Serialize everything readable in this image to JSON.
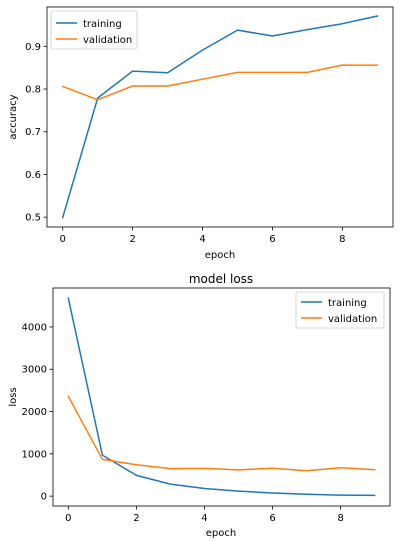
{
  "chart_data": [
    {
      "type": "line",
      "title": "",
      "xlabel": "epoch",
      "ylabel": "accuracy",
      "x": [
        0,
        1,
        2,
        3,
        4,
        5,
        6,
        7,
        8,
        9
      ],
      "xlim": [
        -0.45,
        9.45
      ],
      "ylim": [
        0.477,
        0.992
      ],
      "xticks": [
        0,
        2,
        4,
        6,
        8
      ],
      "yticks": [
        0.5,
        0.6,
        0.7,
        0.8,
        0.9
      ],
      "ytick_labels": [
        "0.5",
        "0.6",
        "0.7",
        "0.8",
        "0.9"
      ],
      "grid": false,
      "legend_position": "upper-left",
      "series": [
        {
          "name": "training",
          "color": "#1f77b4",
          "values": [
            0.499,
            0.779,
            0.842,
            0.838,
            0.891,
            0.938,
            0.924,
            0.939,
            0.953,
            0.971
          ]
        },
        {
          "name": "validation",
          "color": "#ff7f0e",
          "values": [
            0.806,
            0.775,
            0.807,
            0.807,
            0.823,
            0.839,
            0.839,
            0.839,
            0.856,
            0.856
          ]
        }
      ]
    },
    {
      "type": "line",
      "title": "model loss",
      "xlabel": "epoch",
      "ylabel": "loss",
      "x": [
        0,
        1,
        2,
        3,
        4,
        5,
        6,
        7,
        8,
        9
      ],
      "xlim": [
        -0.45,
        9.45
      ],
      "ylim": [
        -233,
        4920
      ],
      "xticks": [
        0,
        2,
        4,
        6,
        8
      ],
      "yticks": [
        0,
        1000,
        2000,
        3000,
        4000
      ],
      "ytick_labels": [
        "0",
        "1000",
        "2000",
        "3000",
        "4000"
      ],
      "grid": false,
      "legend_position": "upper-right",
      "series": [
        {
          "name": "training",
          "color": "#1f77b4",
          "values": [
            4680,
            970,
            490,
            285,
            180,
            120,
            75,
            45,
            25,
            18
          ]
        },
        {
          "name": "validation",
          "color": "#ff7f0e",
          "values": [
            2360,
            870,
            740,
            650,
            655,
            620,
            660,
            600,
            670,
            625
          ]
        }
      ]
    }
  ]
}
